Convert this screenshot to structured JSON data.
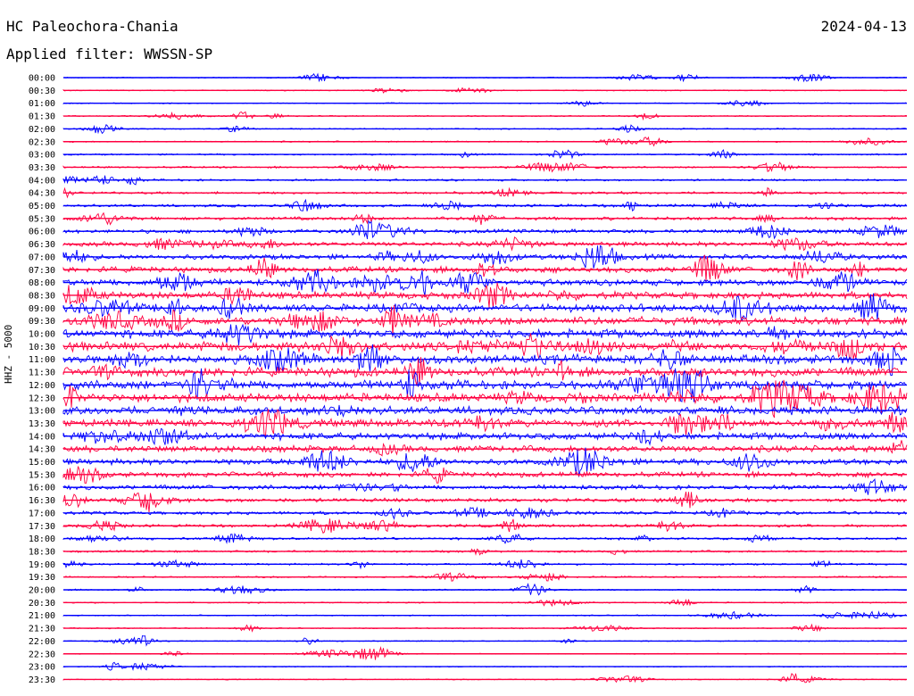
{
  "header": {
    "station": "HC Paleochora-Chania",
    "date": "2024-04-13",
    "filter": "Applied filter: WWSSN-SP"
  },
  "channel_label": "HHZ - 5000",
  "colors": {
    "odd_rows": "#0000ff",
    "even_rows": "#ff0040",
    "background": "#ffffff"
  },
  "chart_data": {
    "type": "line",
    "title": "HC Paleochora-Chania",
    "subtitle": "Applied filter: WWSSN-SP",
    "ylabel": "HHZ - 5000",
    "categories": [
      "00:00",
      "00:30",
      "01:00",
      "01:30",
      "02:00",
      "02:30",
      "03:00",
      "03:30",
      "04:00",
      "04:30",
      "05:00",
      "05:30",
      "06:00",
      "06:30",
      "07:00",
      "07:30",
      "08:00",
      "08:30",
      "09:00",
      "09:30",
      "10:00",
      "10:30",
      "11:00",
      "11:30",
      "12:00",
      "12:30",
      "13:00",
      "13:30",
      "14:00",
      "14:30",
      "15:00",
      "15:30",
      "16:00",
      "16:30",
      "17:00",
      "17:30",
      "18:00",
      "18:30",
      "19:00",
      "19:30",
      "20:00",
      "20:30",
      "21:00",
      "21:30",
      "22:00",
      "22:30",
      "23:00",
      "23:30"
    ],
    "series": [],
    "trace_colors": [
      "#0000ff",
      "#ff0040"
    ],
    "grid": false
  }
}
